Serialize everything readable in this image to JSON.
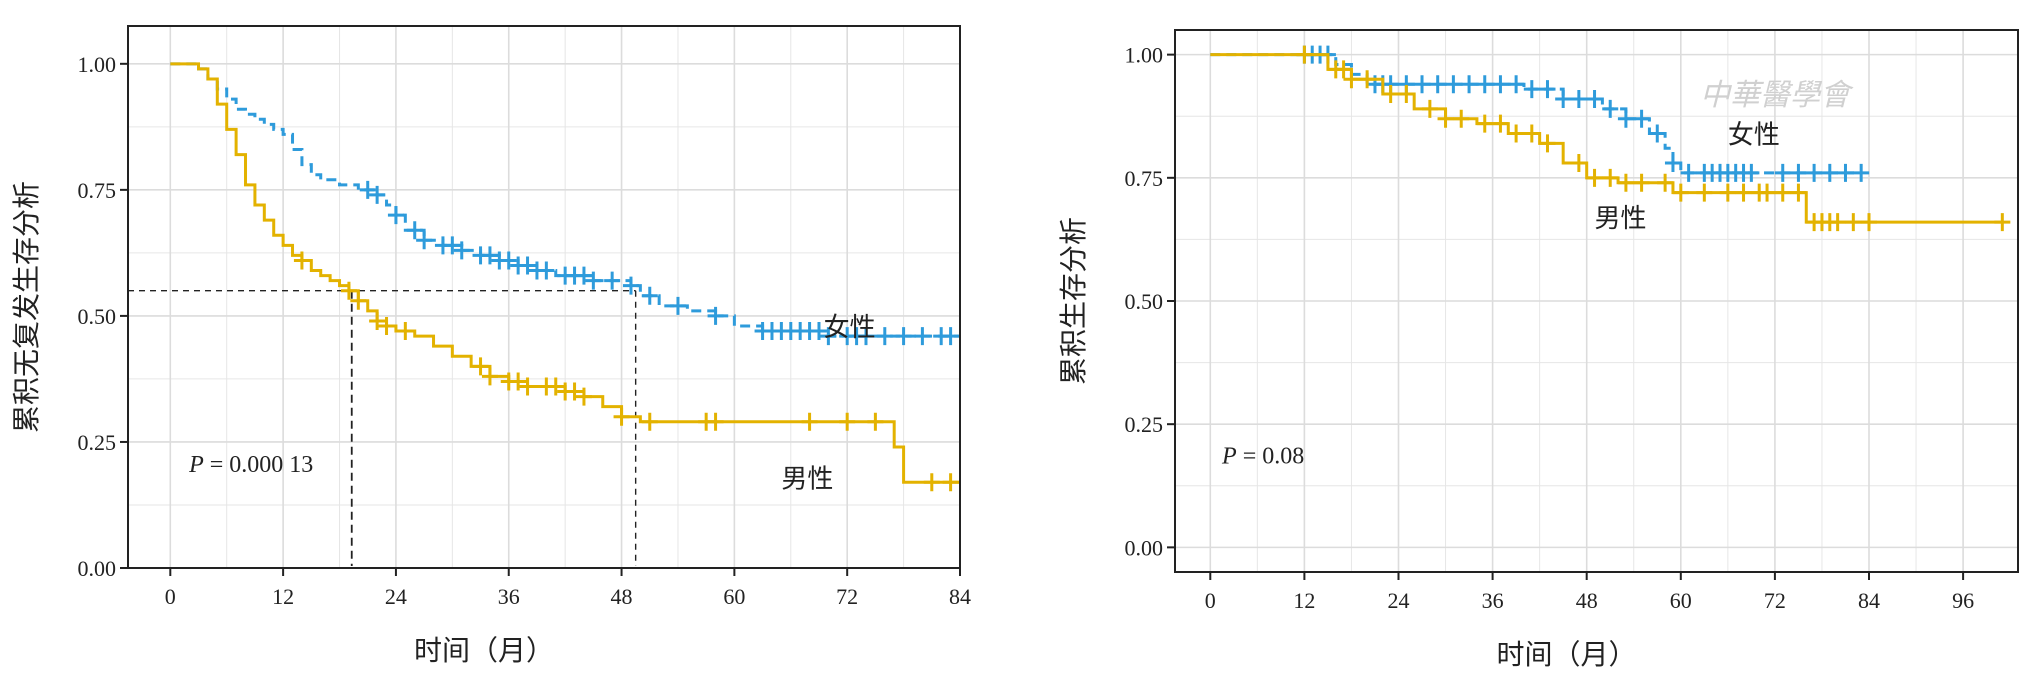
{
  "colors": {
    "female": "#2E9BDB",
    "male": "#E3B200",
    "grid": "#e6e6e6",
    "frame": "#222222"
  },
  "watermark": "中華醫學會",
  "chart_data": [
    {
      "type": "line",
      "subtype": "kaplan-meier",
      "title": "",
      "xlabel": "时间（月）",
      "ylabel": "累积无复发生存分析",
      "xlim": [
        -4.5,
        84
      ],
      "ylim": [
        0,
        1.075
      ],
      "xticks": [
        0,
        12,
        24,
        36,
        48,
        60,
        72,
        84
      ],
      "yticks": [
        0.0,
        0.25,
        0.5,
        0.75,
        1.0
      ],
      "ytick_labels": [
        "0.00",
        "0.25",
        "0.50",
        "0.75",
        "1.00"
      ],
      "grid": true,
      "p_label": {
        "italic": "P",
        "rest": " = 0.000 13",
        "at": [
          2,
          0.19
        ]
      },
      "median_line": {
        "y": 0.55,
        "x_male": 19.3,
        "x_female": 49.5
      },
      "series": [
        {
          "name": "女性",
          "color_key": "female",
          "dash": true,
          "label_at": [
            69.5,
            0.46
          ],
          "x": [
            0,
            2,
            3,
            4,
            5,
            6,
            7,
            8,
            9,
            10,
            11,
            12,
            13,
            14,
            15,
            16,
            17,
            18,
            19,
            20,
            21,
            22,
            23,
            24,
            25,
            27,
            29,
            31,
            33,
            35,
            37,
            39,
            41,
            43,
            45,
            47,
            49,
            50,
            52,
            55,
            58,
            60,
            63,
            70,
            74,
            84
          ],
          "y": [
            1.0,
            1.0,
            0.99,
            0.97,
            0.95,
            0.93,
            0.91,
            0.9,
            0.89,
            0.88,
            0.87,
            0.86,
            0.83,
            0.8,
            0.78,
            0.77,
            0.77,
            0.76,
            0.76,
            0.75,
            0.75,
            0.74,
            0.72,
            0.7,
            0.67,
            0.65,
            0.64,
            0.63,
            0.62,
            0.61,
            0.6,
            0.59,
            0.58,
            0.58,
            0.57,
            0.57,
            0.56,
            0.54,
            0.52,
            0.51,
            0.5,
            0.48,
            0.47,
            0.46,
            0.46,
            0.46
          ],
          "censor_x": [
            21,
            22,
            24,
            26,
            27,
            29,
            30,
            31,
            33,
            34,
            35,
            36,
            37,
            38,
            39,
            40,
            42,
            43,
            44,
            45,
            47,
            49,
            51,
            54,
            58,
            63,
            64,
            65,
            66,
            67,
            68,
            69,
            70,
            72,
            73,
            74,
            76,
            78,
            80,
            82,
            83
          ]
        },
        {
          "name": "男性",
          "color_key": "male",
          "dash": false,
          "label_at": [
            65,
            0.16
          ],
          "x": [
            0,
            2,
            3,
            4,
            5,
            6,
            7,
            8,
            9,
            10,
            11,
            12,
            13,
            14,
            15,
            16,
            17,
            18,
            19,
            20,
            21,
            22,
            23,
            24,
            26,
            28,
            30,
            32,
            34,
            36,
            38,
            40,
            42,
            44,
            46,
            48,
            50,
            55,
            60,
            65,
            70,
            77,
            78,
            84
          ],
          "y": [
            1.0,
            1.0,
            0.99,
            0.97,
            0.92,
            0.87,
            0.82,
            0.76,
            0.72,
            0.69,
            0.66,
            0.64,
            0.62,
            0.61,
            0.59,
            0.58,
            0.57,
            0.56,
            0.55,
            0.53,
            0.51,
            0.49,
            0.48,
            0.47,
            0.46,
            0.44,
            0.42,
            0.4,
            0.38,
            0.37,
            0.36,
            0.36,
            0.35,
            0.34,
            0.32,
            0.3,
            0.29,
            0.29,
            0.29,
            0.29,
            0.29,
            0.24,
            0.17,
            0.17
          ],
          "censor_x": [
            14,
            19,
            20,
            22,
            23,
            25,
            33,
            34,
            36,
            37,
            38,
            40,
            41,
            42,
            43,
            44,
            48,
            51,
            57,
            58,
            68,
            72,
            75,
            81,
            83
          ]
        }
      ]
    },
    {
      "type": "line",
      "subtype": "kaplan-meier",
      "title": "",
      "xlabel": "时间（月）",
      "ylabel": "累积生存分析",
      "xlim": [
        -4.5,
        103
      ],
      "ylim": [
        -0.05,
        1.05
      ],
      "xticks": [
        0,
        12,
        24,
        36,
        48,
        60,
        72,
        84,
        96
      ],
      "yticks": [
        0.0,
        0.25,
        0.5,
        0.75,
        1.0
      ],
      "ytick_labels": [
        "0.00",
        "0.25",
        "0.50",
        "0.75",
        "1.00"
      ],
      "grid": true,
      "p_label": {
        "italic": "P",
        "rest": " = 0.08",
        "at": [
          1.5,
          0.17
        ]
      },
      "series": [
        {
          "name": "女性",
          "color_key": "female",
          "dash": true,
          "label_at": [
            66,
            0.82
          ],
          "x": [
            0,
            14,
            16,
            18,
            20,
            24,
            30,
            35,
            40,
            45,
            50,
            53,
            56,
            58,
            59,
            60,
            70,
            83
          ],
          "y": [
            1.0,
            1.0,
            0.98,
            0.96,
            0.94,
            0.94,
            0.94,
            0.94,
            0.93,
            0.91,
            0.89,
            0.87,
            0.84,
            0.81,
            0.78,
            0.76,
            0.76,
            0.76
          ],
          "censor_x": [
            12,
            13,
            14,
            15,
            21,
            22,
            23,
            25,
            27,
            29,
            31,
            33,
            35,
            37,
            39,
            41,
            43,
            45,
            47,
            49,
            51,
            53,
            55,
            57,
            59,
            61,
            63,
            64,
            65,
            66,
            67,
            68,
            69,
            73,
            75,
            77,
            79,
            81,
            83
          ]
        },
        {
          "name": "男性",
          "color_key": "male",
          "dash": false,
          "label_at": [
            49,
            0.65
          ],
          "x": [
            0,
            12,
            15,
            18,
            22,
            26,
            30,
            34,
            38,
            42,
            45,
            48,
            52,
            58,
            59,
            66,
            76,
            101
          ],
          "y": [
            1.0,
            1.0,
            0.97,
            0.95,
            0.92,
            0.89,
            0.87,
            0.86,
            0.84,
            0.82,
            0.78,
            0.75,
            0.74,
            0.74,
            0.72,
            0.72,
            0.66,
            0.66
          ],
          "censor_x": [
            12,
            16,
            17,
            18,
            20,
            23,
            25,
            28,
            30,
            32,
            35,
            37,
            39,
            41,
            43,
            47,
            49,
            51,
            53,
            55,
            58,
            60,
            63,
            66,
            68,
            70,
            71,
            73,
            75,
            77,
            78,
            79,
            80,
            82,
            84,
            101
          ]
        }
      ]
    }
  ]
}
